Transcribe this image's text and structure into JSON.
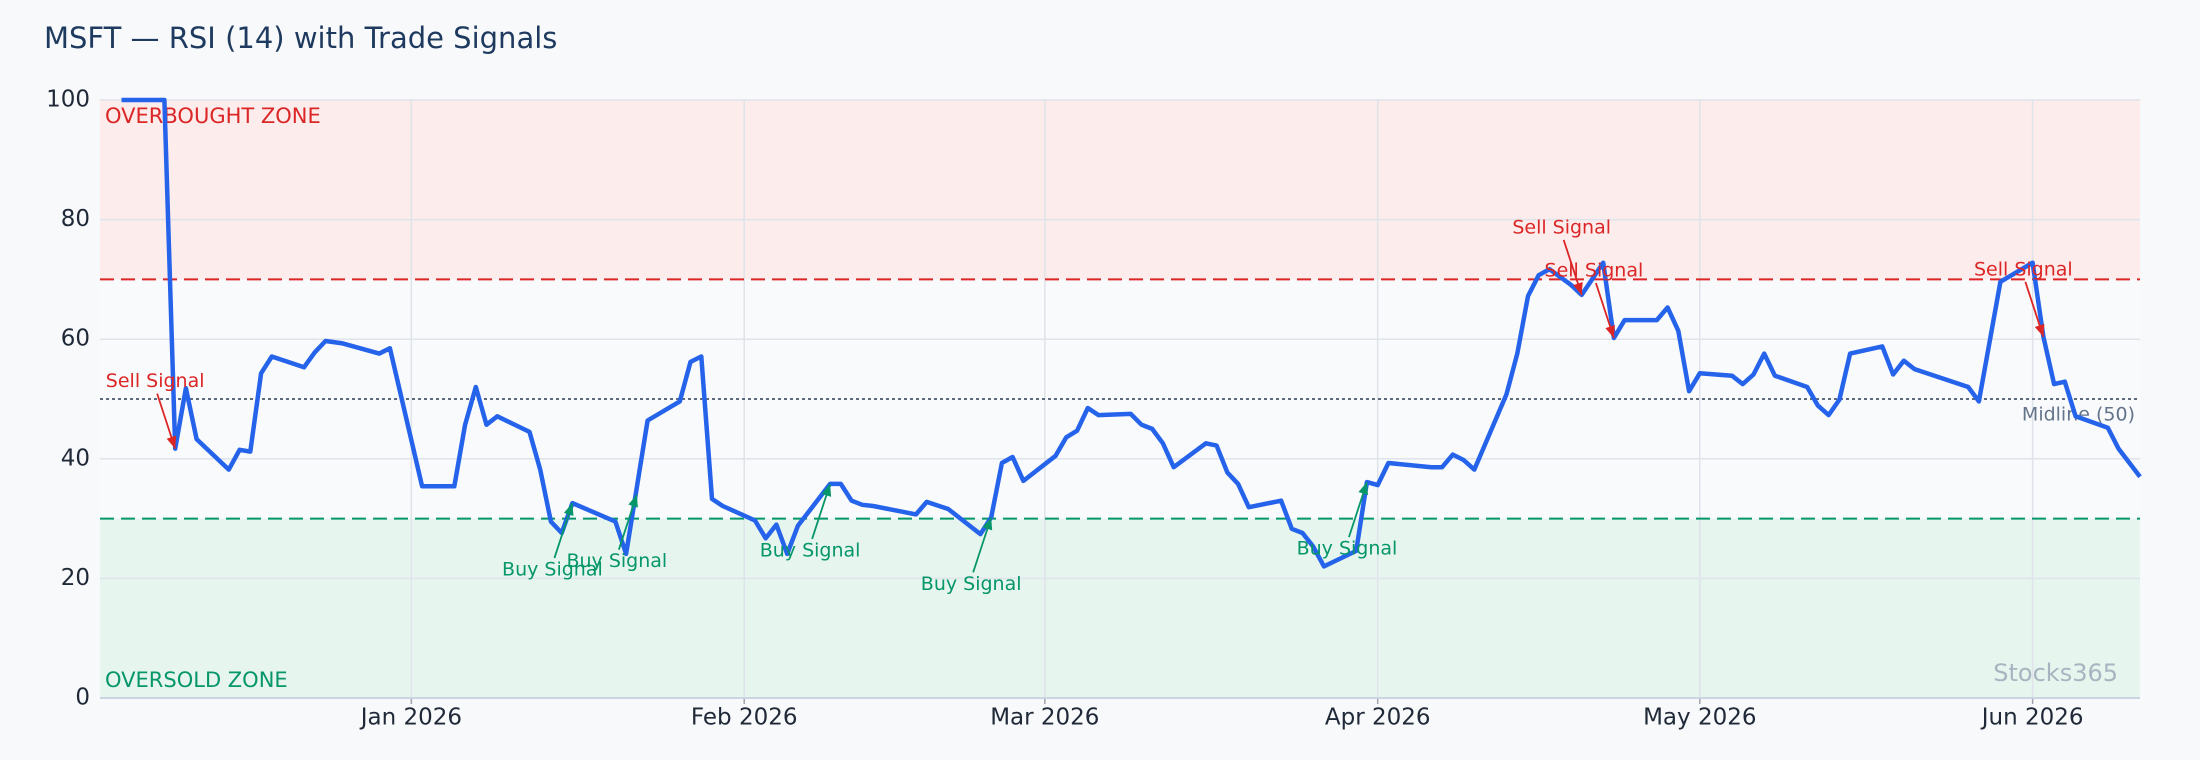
{
  "chart_data": {
    "type": "line",
    "title": "MSFT — RSI (14) with Trade Signals",
    "color": "#2563eb",
    "x": [
      2,
      6,
      7,
      8,
      9,
      12,
      13,
      14,
      15,
      16,
      19,
      20,
      21,
      22.6,
      26,
      27,
      30,
      33,
      34,
      35,
      36,
      37,
      40,
      41,
      42,
      43,
      44,
      48,
      49,
      51,
      54,
      55,
      56,
      57,
      58,
      61,
      62,
      63,
      64,
      65,
      68,
      69,
      70,
      71,
      72,
      76,
      77,
      79,
      82,
      83,
      84,
      85,
      86,
      89,
      90,
      91,
      92,
      93,
      96,
      97,
      98,
      99,
      100,
      103,
      104,
      105,
      106,
      107,
      110,
      111,
      112,
      113,
      114,
      117,
      118,
      119,
      120,
      124,
      125,
      126,
      127,
      128,
      131,
      132,
      133,
      134,
      135,
      137,
      138,
      140,
      141,
      142,
      145,
      146,
      147,
      148,
      149,
      152,
      153,
      154,
      155,
      156,
      159,
      160,
      161,
      162,
      163,
      166,
      167,
      168,
      169,
      174,
      175,
      177,
      180,
      181,
      182,
      183,
      184,
      187,
      188,
      190
    ],
    "values": [
      100,
      100,
      41.7,
      51.8,
      43.3,
      38.2,
      41.5,
      41.2,
      54.3,
      57.1,
      55.3,
      57.8,
      59.7,
      59.3,
      57.6,
      58.5,
      35.4,
      35.4,
      45.7,
      52,
      45.7,
      47.1,
      44.5,
      38.2,
      29.5,
      27.6,
      32.6,
      29.5,
      24.1,
      46.4,
      49.6,
      56.2,
      57.1,
      33.3,
      32.1,
      29.7,
      26.7,
      29,
      24.1,
      28.8,
      35.8,
      35.8,
      33,
      32.3,
      32.1,
      30.7,
      32.8,
      31.6,
      27.4,
      30.2,
      39.3,
      40.3,
      36.3,
      40.5,
      43.6,
      44.7,
      48.5,
      47.3,
      47.5,
      45.7,
      45,
      42.6,
      38.6,
      42.6,
      42.2,
      37.7,
      35.8,
      31.9,
      33,
      28.3,
      27.6,
      25.3,
      22,
      24.6,
      36.1,
      35.6,
      39.3,
      38.6,
      38.6,
      40.7,
      39.8,
      38.2,
      50.8,
      57.6,
      67.2,
      70.7,
      71.7,
      69.1,
      67.4,
      72.8,
      60.2,
      63.2,
      63.2,
      65.3,
      61.4,
      51.3,
      54.3,
      53.9,
      52.5,
      54.1,
      57.6,
      53.9,
      52,
      48.9,
      47.3,
      49.9,
      57.6,
      58.8,
      54.1,
      56.4,
      55,
      52,
      49.6,
      69.6,
      72.8,
      60.4,
      52.5,
      52.9,
      47.1,
      45.2,
      41.7,
      37
    ],
    "xlim": [
      0,
      190
    ],
    "xticks": [
      {
        "value": 29,
        "label": "Jan 2026"
      },
      {
        "value": 60,
        "label": "Feb 2026"
      },
      {
        "value": 88,
        "label": "Mar 2026"
      },
      {
        "value": 119,
        "label": "Apr 2026"
      },
      {
        "value": 149,
        "label": "May 2026"
      },
      {
        "value": 180,
        "label": "Jun 2026"
      }
    ],
    "ylim": [
      0,
      100
    ],
    "yticks": [
      0,
      20,
      40,
      60,
      80,
      100
    ],
    "grid": true,
    "zones": [
      {
        "label": "OVERBOUGHT ZONE",
        "threshold": 70,
        "side": "above",
        "color": "#dc2626",
        "fill": "#fcecec"
      },
      {
        "label": "OVERSOLD ZONE",
        "threshold": 30,
        "side": "below",
        "color": "#059669",
        "fill": "#e7f5ef"
      }
    ],
    "midline": {
      "label": "Midline (50)",
      "value": 50,
      "color": "#475569"
    },
    "signals": [
      {
        "label": "Sell Signal",
        "color": "#dc2626",
        "direction": "above",
        "points": [
          {
            "x": 7,
            "y": 41.7
          },
          {
            "x": 138,
            "y": 67.4
          },
          {
            "x": 141,
            "y": 60.2
          },
          {
            "x": 181,
            "y": 60.4
          }
        ]
      },
      {
        "label": "Buy Signal",
        "color": "#059669",
        "direction": "below",
        "points": [
          {
            "x": 44,
            "y": 32.6
          },
          {
            "x": 50,
            "y": 34
          },
          {
            "x": 68,
            "y": 35.8
          },
          {
            "x": 83,
            "y": 30.2
          },
          {
            "x": 118,
            "y": 36.1
          }
        ]
      }
    ],
    "watermark": "Stocks365"
  }
}
